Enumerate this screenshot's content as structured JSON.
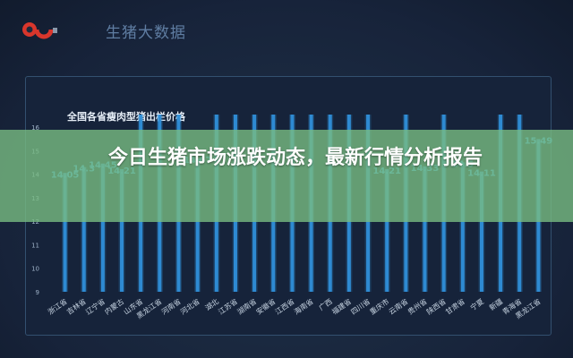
{
  "brand": {
    "logo_icon": "pig-logo-icon",
    "site_name": "生猪大数据"
  },
  "headline": "今日生猪市场涨跌动态，最新行情分析报告",
  "chart_data": {
    "type": "bar",
    "title": "全国各省瘦肉型猪出栏价格",
    "xlabel": "",
    "ylabel": "",
    "ylim": [
      9,
      16
    ],
    "yticks": [
      9,
      10,
      11,
      12,
      13,
      14,
      15,
      16
    ],
    "grid": false,
    "legend": "none",
    "bar_color": "#2f8fd8",
    "categories": [
      "浙江省",
      "吉林省",
      "辽宁省",
      "内蒙古",
      "山东省",
      "黑龙江省",
      "河南省",
      "河北省",
      "湖北",
      "江苏省",
      "湖南省",
      "安徽省",
      "江西省",
      "海南省",
      "广西",
      "福建省",
      "四川省",
      "重庆市",
      "云南省",
      "贵州省",
      "陕西省",
      "甘肃省",
      "宁夏",
      "新疆",
      "青海省",
      "黑龙江省"
    ],
    "values": [
      14.05,
      14.3,
      14.45,
      14.21,
      null,
      null,
      null,
      14.67,
      null,
      null,
      null,
      null,
      null,
      null,
      null,
      null,
      null,
      14.21,
      null,
      14.33,
      null,
      14.5,
      14.11,
      null,
      null,
      15.49
    ],
    "value_labels": [
      "14.05",
      "14.3",
      "14.45",
      "14.21",
      "",
      "",
      "",
      "14.67",
      "",
      "",
      "",
      "",
      "",
      "",
      "",
      "",
      "",
      "14.21",
      "",
      "14.33",
      "",
      "14.5",
      "14.11",
      "",
      "",
      "15.49"
    ]
  }
}
